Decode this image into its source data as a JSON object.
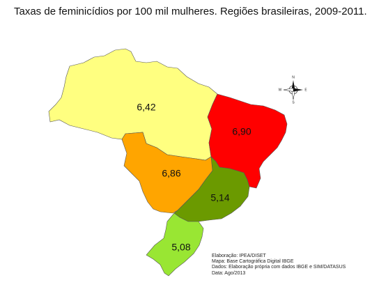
{
  "title": "Taxas de feminicídios por 100 mil mulheres. Regiões brasileiras, 2009-2011.",
  "regions": [
    {
      "id": "norte",
      "value": "6,42",
      "color": "#ffff80"
    },
    {
      "id": "nordeste",
      "value": "6,90",
      "color": "#ff0000"
    },
    {
      "id": "centro-oeste",
      "value": "6,86",
      "color": "#ffa500"
    },
    {
      "id": "sudeste",
      "value": "5,14",
      "color": "#6b9a00"
    },
    {
      "id": "sul",
      "value": "5,08",
      "color": "#99e633"
    }
  ],
  "compass": {
    "n": "N",
    "s": "S",
    "e": "E",
    "w": "W"
  },
  "credits": [
    "Elaboração: IPEA/DISET",
    "Mapa: Base Cartográfica Digital IBGE",
    "Dados: Elaboração própria com dados IBGE e SIM/DATASUS",
    "Data: Ago/2013"
  ]
}
